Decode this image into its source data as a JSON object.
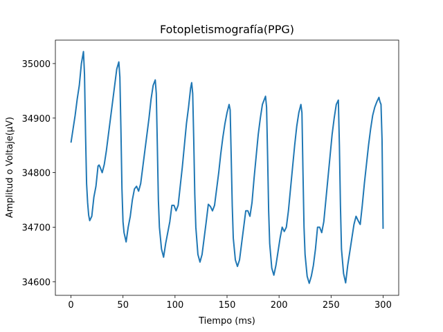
{
  "chart_data": {
    "type": "line",
    "title": "Fotopletismografía(PPG)",
    "x_label": "Tiempo (ms)",
    "y_label": "Amplitud o Voltaje(µV)",
    "color": "#1f77b4",
    "x": [
      0,
      2,
      4,
      6,
      8,
      10,
      12,
      13,
      14,
      15,
      16,
      17,
      18,
      20,
      22,
      24,
      26,
      27,
      28,
      30,
      32,
      34,
      36,
      38,
      40,
      42,
      44,
      46,
      47,
      48,
      49,
      50,
      51,
      53,
      55,
      57,
      59,
      61,
      63,
      65,
      67,
      69,
      71,
      73,
      75,
      77,
      79,
      81,
      82,
      83,
      84,
      85,
      87,
      89,
      91,
      93,
      95,
      97,
      99,
      101,
      103,
      105,
      107,
      109,
      111,
      113,
      115,
      116,
      117,
      118,
      119,
      120,
      122,
      124,
      126,
      128,
      130,
      132,
      134,
      136,
      138,
      140,
      142,
      144,
      146,
      148,
      150,
      152,
      153,
      154,
      155,
      156,
      158,
      160,
      162,
      164,
      166,
      168,
      170,
      172,
      174,
      176,
      178,
      180,
      182,
      184,
      186,
      187,
      188,
      189,
      190,
      191,
      193,
      195,
      197,
      199,
      201,
      203,
      205,
      207,
      209,
      211,
      213,
      215,
      217,
      219,
      221,
      222,
      223,
      224,
      225,
      227,
      229,
      231,
      233,
      235,
      237,
      239,
      241,
      243,
      245,
      247,
      249,
      251,
      253,
      255,
      257,
      258,
      259,
      260,
      262,
      264,
      266,
      268,
      270,
      272,
      274,
      276,
      278,
      280,
      282,
      284,
      286,
      288,
      290,
      292,
      294,
      296,
      297,
      298,
      299,
      300
    ],
    "values": [
      34855,
      34880,
      34905,
      34935,
      34960,
      35000,
      35022,
      34980,
      34870,
      34780,
      34745,
      34722,
      34712,
      34720,
      34755,
      34775,
      34812,
      34814,
      34810,
      34800,
      34815,
      34840,
      34870,
      34900,
      34930,
      34960,
      34990,
      35003,
      34975,
      34880,
      34770,
      34710,
      34690,
      34673,
      34700,
      34720,
      34750,
      34770,
      34775,
      34766,
      34780,
      34810,
      34840,
      34870,
      34900,
      34935,
      34960,
      34970,
      34945,
      34850,
      34750,
      34700,
      34660,
      34645,
      34670,
      34690,
      34710,
      34740,
      34740,
      34730,
      34740,
      34775,
      34810,
      34850,
      34890,
      34920,
      34955,
      34965,
      34945,
      34860,
      34760,
      34700,
      34650,
      34636,
      34650,
      34680,
      34710,
      34742,
      34738,
      34730,
      34740,
      34770,
      34800,
      34835,
      34865,
      34890,
      34910,
      34925,
      34915,
      34830,
      34740,
      34680,
      34640,
      34628,
      34640,
      34670,
      34700,
      34730,
      34730,
      34720,
      34745,
      34790,
      34830,
      34870,
      34900,
      34925,
      34935,
      34940,
      34920,
      34830,
      34730,
      34670,
      34625,
      34612,
      34630,
      34655,
      34680,
      34700,
      34692,
      34700,
      34730,
      34770,
      34810,
      34850,
      34885,
      34910,
      34925,
      34910,
      34800,
      34700,
      34650,
      34610,
      34597,
      34610,
      34630,
      34660,
      34700,
      34700,
      34690,
      34710,
      34750,
      34790,
      34830,
      34870,
      34900,
      34925,
      34933,
      34850,
      34740,
      34660,
      34615,
      34598,
      34630,
      34655,
      34680,
      34705,
      34720,
      34712,
      34705,
      34740,
      34780,
      34815,
      34850,
      34880,
      34905,
      34920,
      34930,
      34938,
      34930,
      34925,
      34860,
      34697
    ],
    "xlim": [
      -15,
      315
    ],
    "ylim": [
      34575,
      35043
    ],
    "xticks": [
      0,
      50,
      100,
      150,
      200,
      250,
      300
    ],
    "yticks": [
      34600,
      34700,
      34800,
      34900,
      35000
    ]
  }
}
